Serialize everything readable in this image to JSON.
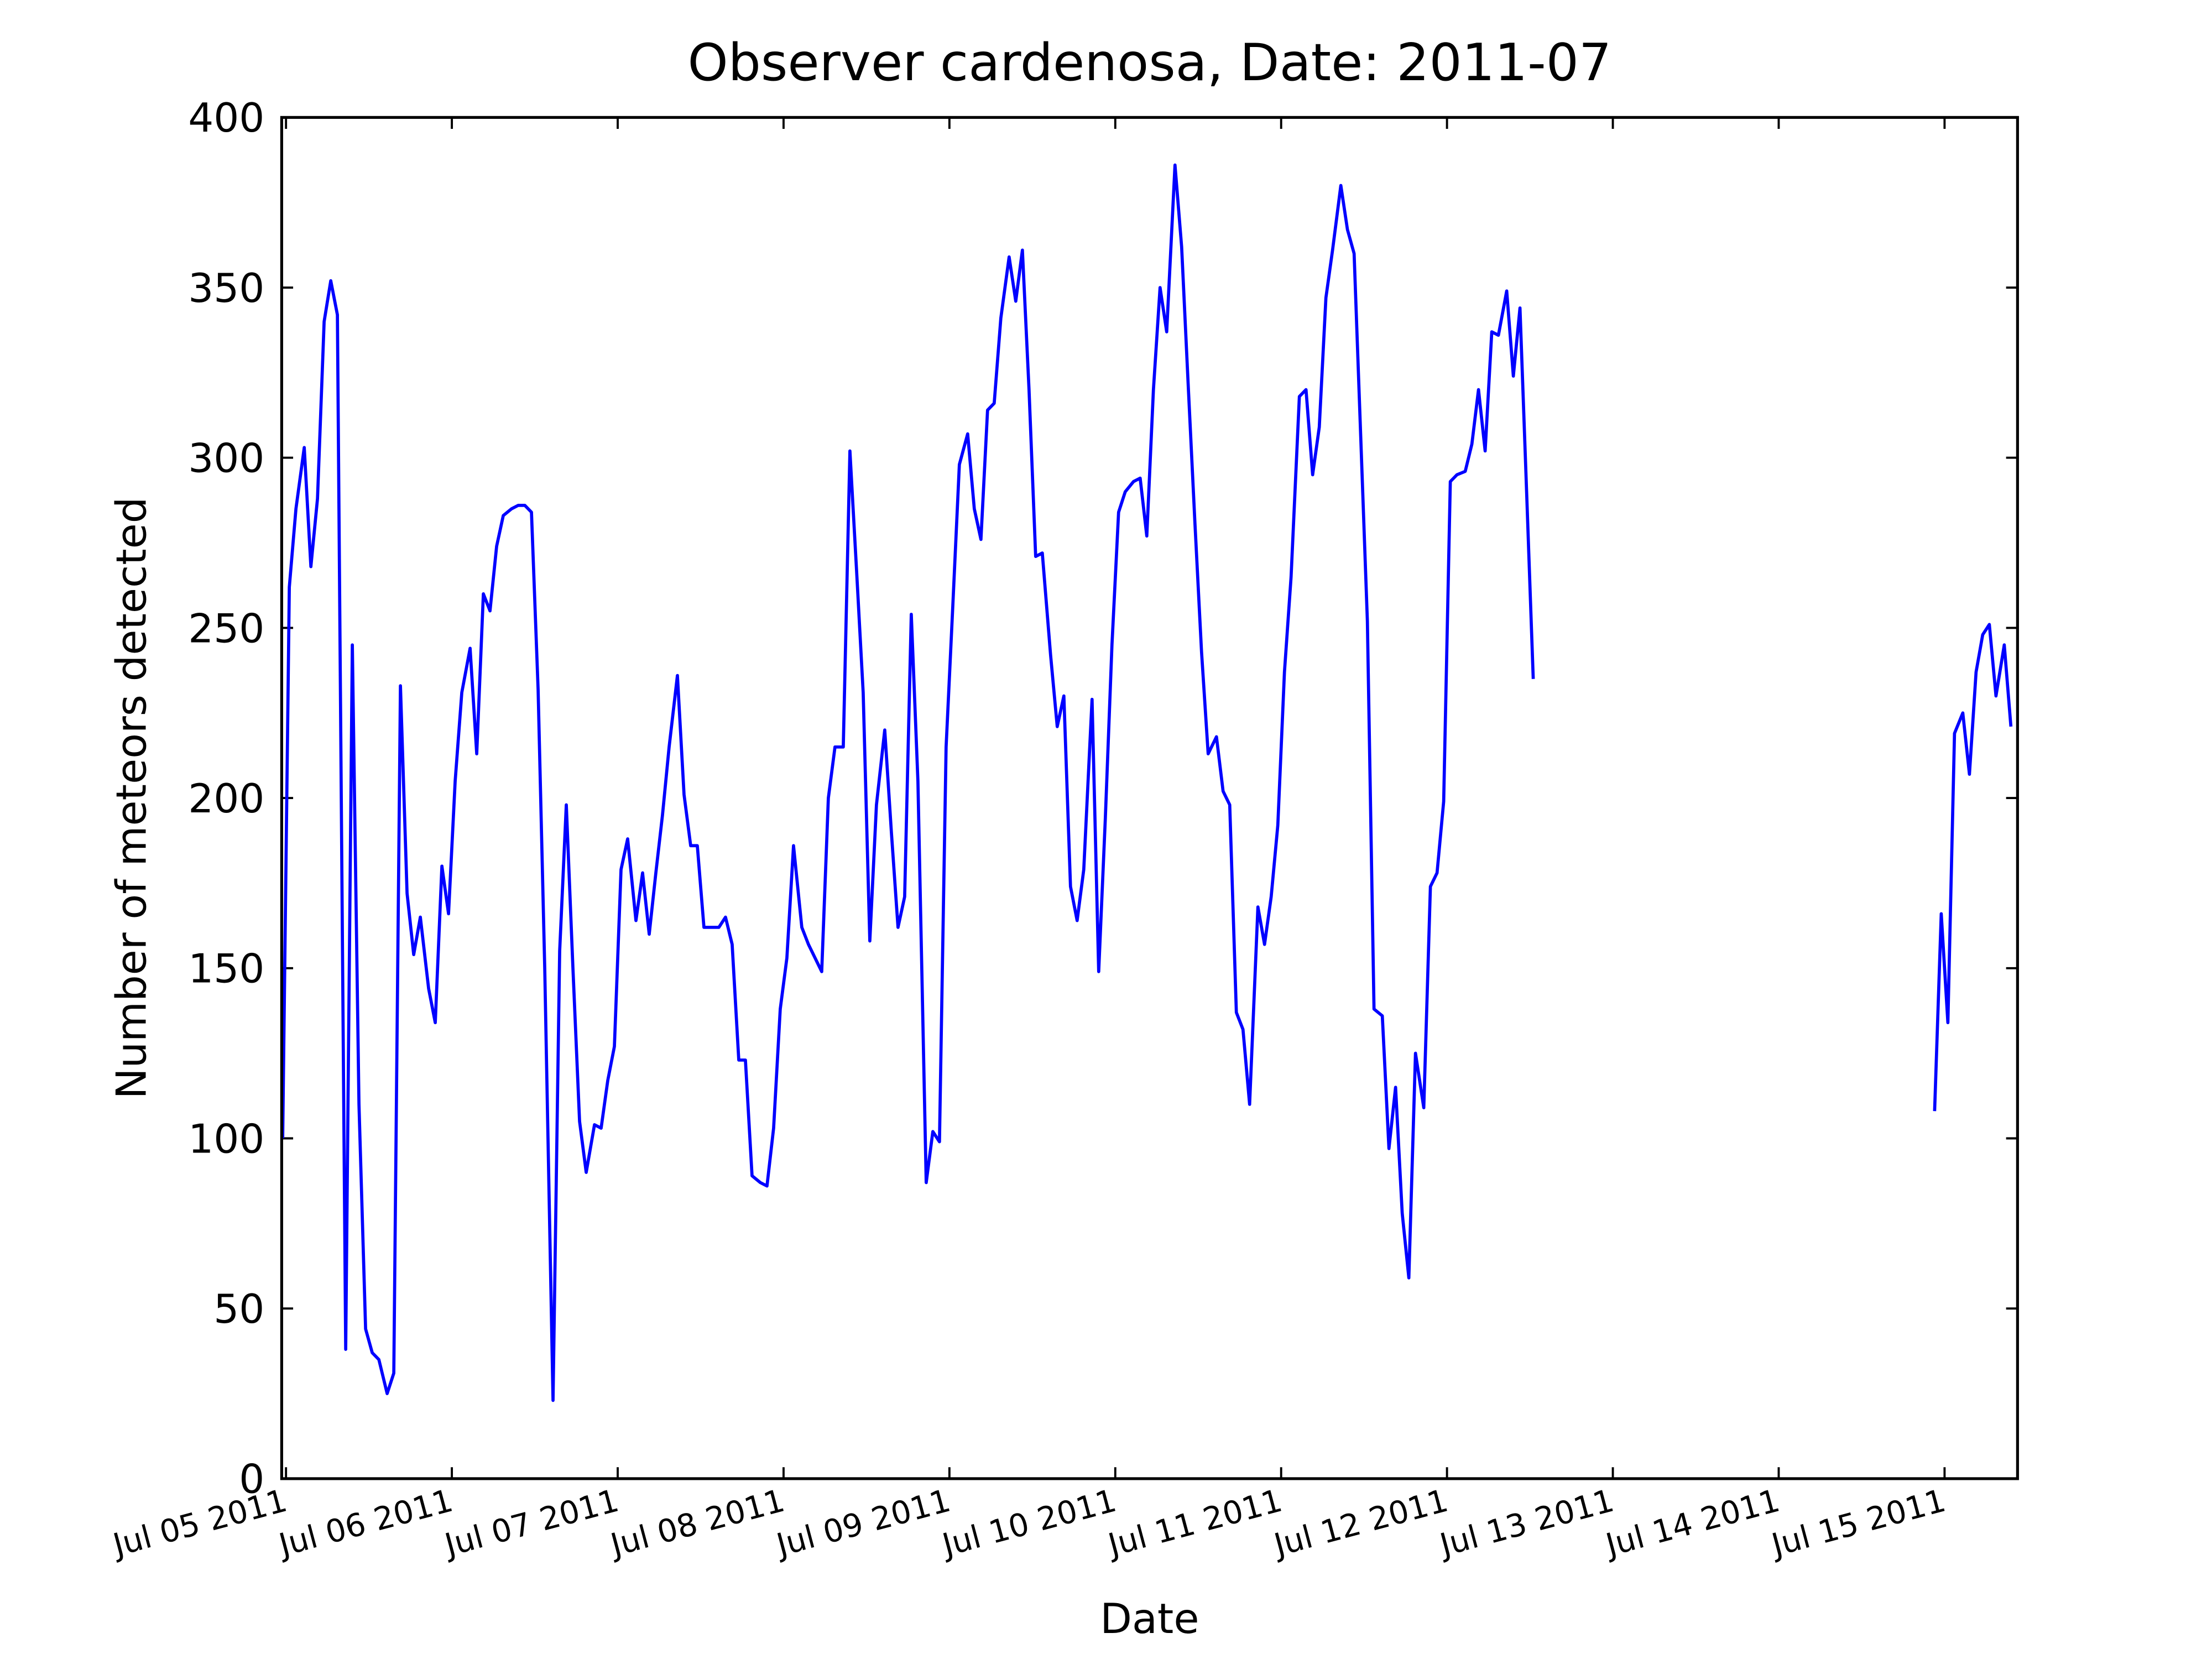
{
  "chart_data": {
    "type": "line",
    "title": "Observer cardenosa, Date: 2011-07",
    "xlabel": "Date",
    "ylabel": "Number of meteors detected",
    "x": [
      4.98,
      5.02,
      5.06,
      5.11,
      5.15,
      5.19,
      5.23,
      5.27,
      5.31,
      5.36,
      5.4,
      5.44,
      5.48,
      5.52,
      5.56,
      5.61,
      5.65,
      5.69,
      5.73,
      5.77,
      5.81,
      5.86,
      5.9,
      5.94,
      5.98,
      6.02,
      6.06,
      6.11,
      6.15,
      6.19,
      6.23,
      6.27,
      6.31,
      6.36,
      6.4,
      6.44,
      6.48,
      6.52,
      6.56,
      6.61,
      6.65,
      6.69,
      6.73,
      6.77,
      6.81,
      6.86,
      6.9,
      6.94,
      6.98,
      7.02,
      7.06,
      7.11,
      7.15,
      7.19,
      7.23,
      7.27,
      7.31,
      7.36,
      7.4,
      7.44,
      7.48,
      7.52,
      7.56,
      7.61,
      7.65,
      7.69,
      7.73,
      7.77,
      7.81,
      7.86,
      7.9,
      7.94,
      7.98,
      8.02,
      8.06,
      8.11,
      8.15,
      8.19,
      8.23,
      8.27,
      8.31,
      8.36,
      8.4,
      8.44,
      8.48,
      8.52,
      8.56,
      8.61,
      8.65,
      8.69,
      8.73,
      8.77,
      8.81,
      8.86,
      8.9,
      8.94,
      8.98,
      9.02,
      9.06,
      9.11,
      9.15,
      9.19,
      9.23,
      9.27,
      9.31,
      9.36,
      9.4,
      9.44,
      9.48,
      9.52,
      9.56,
      9.61,
      9.65,
      9.69,
      9.73,
      9.77,
      9.81,
      9.86,
      9.9,
      9.94,
      9.98,
      10.02,
      10.06,
      10.11,
      10.15,
      10.19,
      10.23,
      10.27,
      10.31,
      10.36,
      10.4,
      10.44,
      10.48,
      10.52,
      10.56,
      10.61,
      10.65,
      10.69,
      10.73,
      10.77,
      10.81,
      10.86,
      10.9,
      10.94,
      10.98,
      11.02,
      11.06,
      11.11,
      11.15,
      11.19,
      11.23,
      11.27,
      11.31,
      11.36,
      11.4,
      11.44,
      11.48,
      11.52,
      11.56,
      11.61,
      11.65,
      11.69,
      11.73,
      11.77,
      11.81,
      11.86,
      11.9,
      11.94,
      11.98,
      12.02,
      12.06,
      12.11,
      12.15,
      12.19,
      12.23,
      12.27,
      12.31,
      12.36,
      12.4,
      12.44,
      12.48,
      12.52,
      12.56,
      14.94,
      14.98,
      15.02,
      15.06,
      15.11,
      15.15,
      15.19,
      15.23,
      15.27,
      15.31,
      15.36,
      15.4
    ],
    "series": [
      {
        "color": "#0000ff",
        "values": [
          100,
          262,
          285,
          303,
          268,
          288,
          340,
          352,
          342,
          38,
          245,
          110,
          44,
          37,
          35,
          25,
          31,
          233,
          172,
          154,
          165,
          144,
          134,
          180,
          166,
          205,
          231,
          244,
          213,
          260,
          255,
          274,
          283,
          285,
          286,
          286,
          284,
          232,
          150,
          23,
          155,
          198,
          150,
          105,
          90,
          104,
          103,
          117,
          127,
          179,
          188,
          164,
          178,
          160,
          178,
          195,
          215,
          236,
          201,
          186,
          186,
          162,
          162,
          162,
          165,
          157,
          123,
          123,
          89,
          87,
          86,
          103,
          138,
          153,
          186,
          162,
          157,
          153,
          149,
          200,
          215,
          215,
          302,
          267,
          231,
          158,
          198,
          220,
          190,
          162,
          171,
          254,
          205,
          87,
          102,
          99,
          215,
          256,
          298,
          307,
          285,
          276,
          314,
          316,
          341,
          359,
          346,
          361,
          320,
          271,
          272,
          242,
          221,
          230,
          174,
          164,
          179,
          229,
          149,
          194,
          245,
          284,
          290,
          293,
          294,
          277,
          320,
          350,
          337,
          386,
          362,
          321,
          281,
          243,
          213,
          218,
          202,
          198,
          137,
          132,
          110,
          168,
          157,
          171,
          192,
          237,
          265,
          318,
          320,
          295,
          309,
          347,
          361,
          380,
          367,
          360,
          306,
          252,
          138,
          136,
          97,
          115,
          78,
          59,
          125,
          109,
          174,
          178,
          199,
          293,
          295,
          296,
          304,
          320,
          302,
          337,
          336,
          349,
          324,
          344,
          290,
          235,
          null,
          108,
          166,
          134,
          219,
          225,
          207,
          237,
          248,
          251,
          230,
          245,
          221
        ]
      }
    ],
    "xlim": [
      4.974,
      15.44
    ],
    "ylim": [
      0,
      400
    ],
    "xticks": [
      {
        "value": 5,
        "label": "Jul 05 2011"
      },
      {
        "value": 6,
        "label": "Jul 06 2011"
      },
      {
        "value": 7,
        "label": "Jul 07 2011"
      },
      {
        "value": 8,
        "label": "Jul 08 2011"
      },
      {
        "value": 9,
        "label": "Jul 09 2011"
      },
      {
        "value": 10,
        "label": "Jul 10 2011"
      },
      {
        "value": 11,
        "label": "Jul 11 2011"
      },
      {
        "value": 12,
        "label": "Jul 12 2011"
      },
      {
        "value": 13,
        "label": "Jul 13 2011"
      },
      {
        "value": 14,
        "label": "Jul 14 2011"
      },
      {
        "value": 15,
        "label": "Jul 15 2011"
      }
    ],
    "yticks": [
      0,
      50,
      100,
      150,
      200,
      250,
      300,
      350,
      400
    ]
  }
}
